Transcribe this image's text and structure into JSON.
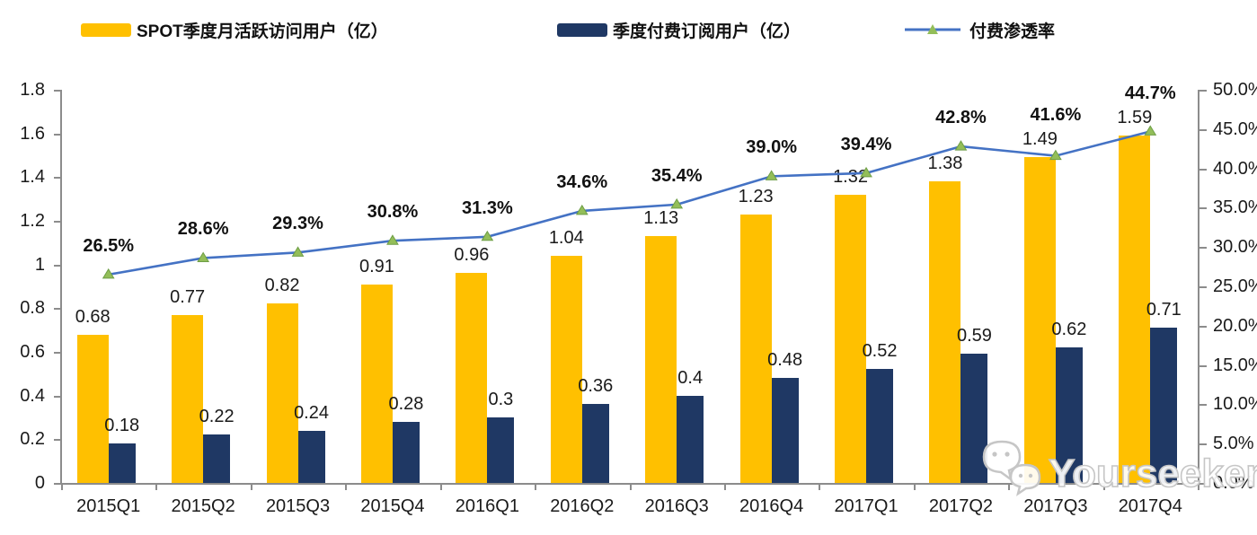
{
  "legend": [
    {
      "label": "SPOT季度月活跃访问用户（亿）",
      "swatch": "bar",
      "color": "#FFC000"
    },
    {
      "label": "季度付费订阅用户（亿）",
      "swatch": "bar",
      "color": "#1F3864"
    },
    {
      "label": "付费渗透率",
      "swatch": "line",
      "color": "#4472C4",
      "marker_color": "#93BE59"
    }
  ],
  "watermark": {
    "text": "Yourseeker",
    "icon": "wechat-icon"
  },
  "chart_data": {
    "type": "bar",
    "subtype": "grouped bars with secondary-axis line (combo chart)",
    "categories": [
      "2015Q1",
      "2015Q2",
      "2015Q3",
      "2015Q4",
      "2016Q1",
      "2016Q2",
      "2016Q3",
      "2016Q4",
      "2017Q1",
      "2017Q2",
      "2017Q3",
      "2017Q4"
    ],
    "series": [
      {
        "name": "SPOT季度月活跃访问用户（亿）",
        "type": "bar",
        "axis": "left",
        "color": "#FFC000",
        "values": [
          0.68,
          0.77,
          0.82,
          0.91,
          0.96,
          1.04,
          1.13,
          1.23,
          1.32,
          1.38,
          1.49,
          1.59
        ],
        "labels": [
          "0.68",
          "0.77",
          "0.82",
          "0.91",
          "0.96",
          "1.04",
          "1.13",
          "1.23",
          "1.32",
          "1.38",
          "1.49",
          "1.59"
        ]
      },
      {
        "name": "季度付费订阅用户（亿）",
        "type": "bar",
        "axis": "left",
        "color": "#1F3864",
        "values": [
          0.18,
          0.22,
          0.24,
          0.28,
          0.3,
          0.36,
          0.4,
          0.48,
          0.52,
          0.59,
          0.62,
          0.71
        ],
        "labels": [
          "0.18",
          "0.22",
          "0.24",
          "0.28",
          "0.3",
          "0.36",
          "0.4",
          "0.48",
          "0.52",
          "0.59",
          "0.62",
          "0.71"
        ]
      },
      {
        "name": "付费渗透率",
        "type": "line",
        "axis": "right",
        "color": "#4472C4",
        "marker": "triangle",
        "marker_color": "#93BE59",
        "values": [
          26.5,
          28.6,
          29.3,
          30.8,
          31.3,
          34.6,
          35.4,
          39.0,
          39.4,
          42.8,
          41.6,
          44.7
        ],
        "labels": [
          "26.5%",
          "28.6%",
          "29.3%",
          "30.8%",
          "31.3%",
          "34.6%",
          "35.4%",
          "39.0%",
          "39.4%",
          "42.8%",
          "41.6%",
          "44.7%"
        ]
      }
    ],
    "left_axis": {
      "min": 0,
      "max": 1.8,
      "tick_values": [
        0,
        0.2,
        0.4,
        0.6,
        0.8,
        1,
        1.2,
        1.4,
        1.6,
        1.8
      ],
      "tick_labels": [
        "0",
        "0.2",
        "0.4",
        "0.6",
        "0.8",
        "1",
        "1.2",
        "1.4",
        "1.6",
        "1.8"
      ]
    },
    "right_axis": {
      "min": 0,
      "max": 50,
      "tick_values": [
        0,
        5,
        10,
        15,
        20,
        25,
        30,
        35,
        40,
        45,
        50
      ],
      "tick_labels": [
        "0.0%",
        "5.0%",
        "10.0%",
        "15.0%",
        "20.0%",
        "25.0%",
        "30.0%",
        "35.0%",
        "40.0%",
        "45.0%",
        "50.0%"
      ]
    },
    "grid": false,
    "legend_position": "top",
    "title": ""
  }
}
